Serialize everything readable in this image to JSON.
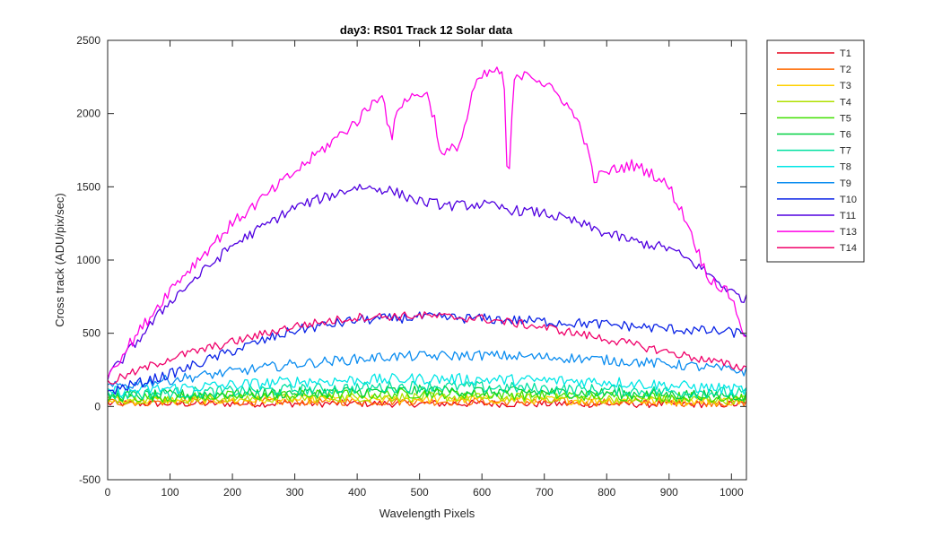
{
  "chart_data": {
    "type": "line",
    "title": "day3: RS01  Track 12 Solar data",
    "xlabel": "Wavelength Pixels",
    "ylabel": "Cross track (ADU/pix/sec)",
    "xlim": [
      0,
      1024
    ],
    "ylim": [
      -500,
      2500
    ],
    "xticks": [
      0,
      100,
      200,
      300,
      400,
      500,
      600,
      700,
      800,
      900,
      1000
    ],
    "yticks": [
      -500,
      0,
      500,
      1000,
      1500,
      2000,
      2500
    ],
    "grid": false,
    "legend_position": "outside-top-right",
    "x_sample_step": 4,
    "series": [
      {
        "name": "T1",
        "color": "#e6001a",
        "profile": [
          [
            0,
            20
          ],
          [
            512,
            20
          ],
          [
            1024,
            15
          ]
        ],
        "noise": 25
      },
      {
        "name": "T2",
        "color": "#ff6a00",
        "profile": [
          [
            0,
            30
          ],
          [
            512,
            35
          ],
          [
            1024,
            25
          ]
        ],
        "noise": 28
      },
      {
        "name": "T3",
        "color": "#ffd000",
        "profile": [
          [
            0,
            40
          ],
          [
            512,
            50
          ],
          [
            1024,
            35
          ]
        ],
        "noise": 30
      },
      {
        "name": "T4",
        "color": "#b0e000",
        "profile": [
          [
            0,
            50
          ],
          [
            512,
            65
          ],
          [
            1024,
            45
          ]
        ],
        "noise": 32
      },
      {
        "name": "T5",
        "color": "#40e000",
        "profile": [
          [
            0,
            60
          ],
          [
            512,
            90
          ],
          [
            1024,
            60
          ]
        ],
        "noise": 35
      },
      {
        "name": "T6",
        "color": "#00d040",
        "profile": [
          [
            0,
            70
          ],
          [
            512,
            110
          ],
          [
            1024,
            75
          ]
        ],
        "noise": 38
      },
      {
        "name": "T7",
        "color": "#00e0a0",
        "profile": [
          [
            0,
            80
          ],
          [
            512,
            140
          ],
          [
            1024,
            90
          ]
        ],
        "noise": 40
      },
      {
        "name": "T8",
        "color": "#00e6e6",
        "profile": [
          [
            0,
            100
          ],
          [
            300,
            170
          ],
          [
            512,
            190
          ],
          [
            800,
            170
          ],
          [
            1024,
            110
          ]
        ],
        "noise": 40
      },
      {
        "name": "T9",
        "color": "#0a8cf0",
        "profile": [
          [
            0,
            130
          ],
          [
            150,
            210
          ],
          [
            300,
            290
          ],
          [
            450,
            340
          ],
          [
            600,
            350
          ],
          [
            750,
            330
          ],
          [
            900,
            290
          ],
          [
            1024,
            240
          ]
        ],
        "noise": 35
      },
      {
        "name": "T10",
        "color": "#0a23e6",
        "profile": [
          [
            0,
            100
          ],
          [
            100,
            220
          ],
          [
            200,
            380
          ],
          [
            300,
            520
          ],
          [
            400,
            590
          ],
          [
            500,
            610
          ],
          [
            600,
            600
          ],
          [
            700,
            580
          ],
          [
            800,
            560
          ],
          [
            900,
            530
          ],
          [
            1024,
            500
          ]
        ],
        "noise": 35
      },
      {
        "name": "T11",
        "color": "#5000e0",
        "profile": [
          [
            0,
            200
          ],
          [
            100,
            720
          ],
          [
            200,
            1100
          ],
          [
            300,
            1360
          ],
          [
            400,
            1500
          ],
          [
            450,
            1480
          ],
          [
            500,
            1400
          ],
          [
            550,
            1370
          ],
          [
            600,
            1380
          ],
          [
            650,
            1340
          ],
          [
            700,
            1320
          ],
          [
            750,
            1260
          ],
          [
            800,
            1180
          ],
          [
            850,
            1120
          ],
          [
            900,
            1080
          ],
          [
            950,
            950
          ],
          [
            1000,
            780
          ],
          [
            1024,
            730
          ]
        ],
        "noise": 35
      },
      {
        "name": "T13",
        "color": "#ff00e6",
        "profile": [
          [
            0,
            220
          ],
          [
            100,
            800
          ],
          [
            200,
            1250
          ],
          [
            300,
            1600
          ],
          [
            400,
            1950
          ],
          [
            440,
            2150
          ],
          [
            455,
            1800
          ],
          [
            465,
            2050
          ],
          [
            480,
            2100
          ],
          [
            510,
            2150
          ],
          [
            525,
            1950
          ],
          [
            535,
            1700
          ],
          [
            550,
            1750
          ],
          [
            565,
            1800
          ],
          [
            575,
            1950
          ],
          [
            585,
            2150
          ],
          [
            600,
            2250
          ],
          [
            625,
            2300
          ],
          [
            635,
            2250
          ],
          [
            642,
            1400
          ],
          [
            650,
            2200
          ],
          [
            670,
            2300
          ],
          [
            700,
            2200
          ],
          [
            730,
            2100
          ],
          [
            760,
            1900
          ],
          [
            780,
            1550
          ],
          [
            800,
            1600
          ],
          [
            840,
            1650
          ],
          [
            870,
            1600
          ],
          [
            900,
            1500
          ],
          [
            930,
            1250
          ],
          [
            960,
            900
          ],
          [
            1000,
            750
          ],
          [
            1024,
            450
          ]
        ],
        "noise": 40
      },
      {
        "name": "T14",
        "color": "#f0006a",
        "profile": [
          [
            0,
            160
          ],
          [
            100,
            330
          ],
          [
            200,
            440
          ],
          [
            300,
            550
          ],
          [
            400,
            610
          ],
          [
            500,
            620
          ],
          [
            600,
            600
          ],
          [
            700,
            540
          ],
          [
            800,
            460
          ],
          [
            900,
            370
          ],
          [
            1000,
            280
          ],
          [
            1024,
            260
          ]
        ],
        "noise": 30
      }
    ]
  }
}
